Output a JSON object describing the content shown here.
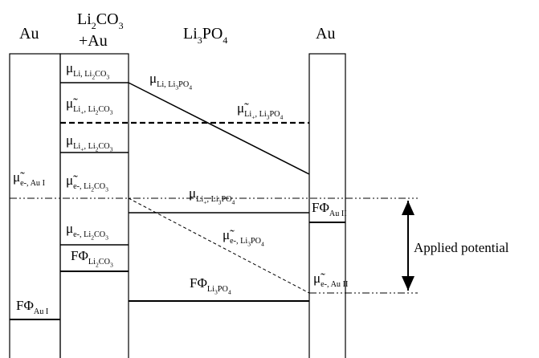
{
  "headers": [
    {
      "parts": [
        {
          "t": "Au"
        }
      ]
    },
    {
      "parts": [
        {
          "t": "Li"
        },
        {
          "sub": "2"
        },
        {
          "t": "CO"
        },
        {
          "sub": "3"
        }
      ]
    },
    {
      "parts": [
        {
          "t": "+Au"
        }
      ]
    },
    {
      "parts": [
        {
          "t": "Li"
        },
        {
          "sub": "3"
        },
        {
          "t": "PO"
        },
        {
          "sub": "4"
        }
      ]
    },
    {
      "parts": [
        {
          "t": "Au"
        }
      ]
    }
  ],
  "labels": [
    {
      "parts": [
        {
          "t": "μ"
        },
        {
          "sub": "Li, Li"
        },
        {
          "subsub": "2"
        },
        {
          "sub": "CO"
        },
        {
          "subsub": "3"
        }
      ]
    },
    {
      "parts": [
        {
          "t": "μ"
        },
        {
          "sub": "Li, Li"
        },
        {
          "subsub": "3"
        },
        {
          "sub": "PO"
        },
        {
          "subsub": "4"
        }
      ]
    },
    {
      "parts": [
        {
          "t": "μ̃"
        },
        {
          "sub": "Li"
        },
        {
          "subsub": "+"
        },
        {
          "sub": ", Li"
        },
        {
          "subsub": "2"
        },
        {
          "sub": "CO"
        },
        {
          "subsub": "3"
        }
      ]
    },
    {
      "parts": [
        {
          "t": "μ̃"
        },
        {
          "sub": "Li"
        },
        {
          "subsub": "+"
        },
        {
          "sub": ", Li"
        },
        {
          "subsub": "3"
        },
        {
          "sub": "PO"
        },
        {
          "subsub": "4"
        }
      ]
    },
    {
      "parts": [
        {
          "t": "μ"
        },
        {
          "sub": "Li"
        },
        {
          "subsub": "+"
        },
        {
          "sub": ", Li"
        },
        {
          "subsub": "2"
        },
        {
          "sub": "CO"
        },
        {
          "subsub": "3"
        }
      ]
    },
    {
      "parts": [
        {
          "t": "μ̃"
        },
        {
          "sub": "e-, Au I"
        }
      ]
    },
    {
      "parts": [
        {
          "t": "μ̃"
        },
        {
          "sub": "e-, Li"
        },
        {
          "subsub": "2"
        },
        {
          "sub": "CO"
        },
        {
          "subsub": "3"
        }
      ]
    },
    {
      "parts": [
        {
          "t": "μ"
        },
        {
          "sub": "Li"
        },
        {
          "subsub": "+"
        },
        {
          "sub": ", Li"
        },
        {
          "subsub": "3"
        },
        {
          "sub": "PO"
        },
        {
          "subsub": "4"
        }
      ]
    },
    {
      "parts": [
        {
          "t": "FΦ"
        },
        {
          "sub": "Au II"
        }
      ]
    },
    {
      "parts": [
        {
          "t": "μ̃"
        },
        {
          "sub": "e-, Li"
        },
        {
          "subsub": "3"
        },
        {
          "sub": "PO"
        },
        {
          "subsub": "4"
        }
      ]
    },
    {
      "parts": [
        {
          "t": "μ"
        },
        {
          "sub": "e-, Li"
        },
        {
          "subsub": "2"
        },
        {
          "sub": "CO"
        },
        {
          "subsub": "3"
        }
      ]
    },
    {
      "parts": [
        {
          "t": "FΦ"
        },
        {
          "sub": "Li"
        },
        {
          "subsub": "2"
        },
        {
          "sub": "CO"
        },
        {
          "subsub": "3"
        }
      ]
    },
    {
      "parts": [
        {
          "t": "FΦ"
        },
        {
          "sub": "Li"
        },
        {
          "subsub": "3"
        },
        {
          "sub": "PO"
        },
        {
          "subsub": "4"
        }
      ]
    },
    {
      "parts": [
        {
          "t": "μ̃"
        },
        {
          "sub": "e-, Au II"
        }
      ]
    },
    {
      "parts": [
        {
          "t": "FΦ"
        },
        {
          "sub": "Au I"
        }
      ]
    }
  ],
  "annotation": "Applied potential"
}
